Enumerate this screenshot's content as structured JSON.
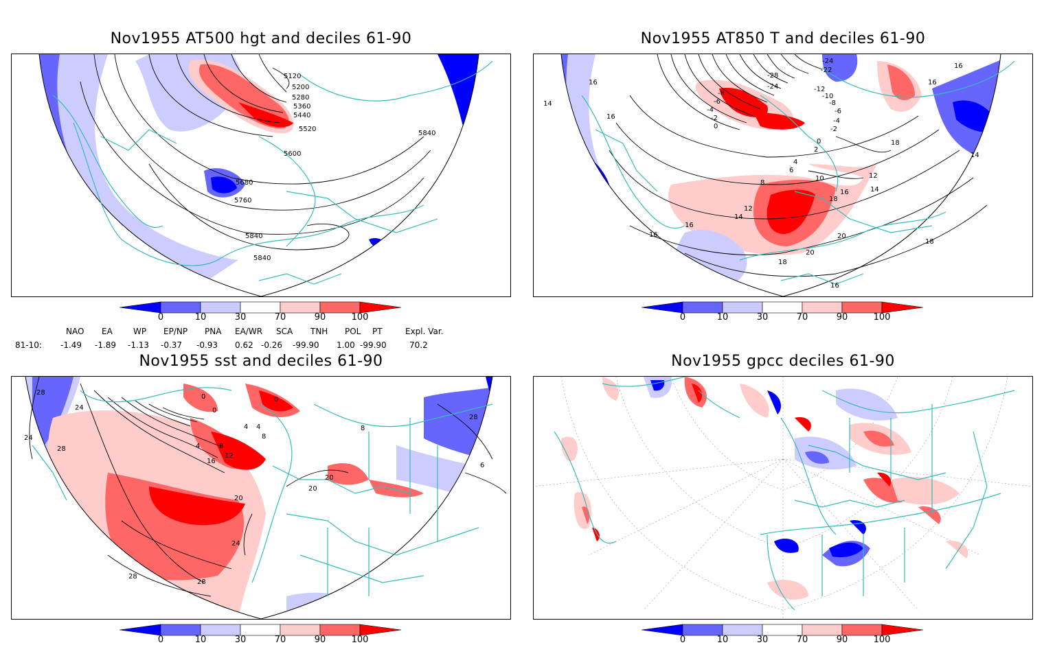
{
  "panels": [
    {
      "title": "Nov1955 AT500 hgt and deciles 61-90",
      "contour_labels": [
        "5120",
        "5200",
        "5280",
        "5360",
        "5440",
        "5520",
        "5600",
        "5680",
        "5760",
        "5840",
        "5840",
        "5840"
      ]
    },
    {
      "title": "Nov1955 AT850 T and deciles 61-90",
      "contour_labels": [
        "-24",
        "-22",
        "-28",
        "-24",
        "-12",
        "-8",
        "-6",
        "-4",
        "-2",
        "0",
        "-10",
        "-8",
        "-6",
        "-4",
        "-2",
        "0",
        "2",
        "4",
        "6",
        "8",
        "10",
        "12",
        "14",
        "16",
        "16",
        "18",
        "18",
        "20",
        "20",
        "18",
        "16",
        "16",
        "16",
        "14",
        "16",
        "14",
        "12",
        "14",
        "16",
        "16",
        "18"
      ]
    },
    {
      "title": "Nov1955 sst and deciles 61-90",
      "contour_labels": [
        "28",
        "24",
        "24",
        "28",
        "0",
        "0",
        "0",
        "4",
        "4",
        "4",
        "8",
        "8",
        "12",
        "16",
        "20",
        "20",
        "20",
        "24",
        "28",
        "28",
        "28",
        "6",
        "8"
      ]
    },
    {
      "title": "Nov1955 gpcc deciles 61-90",
      "contour_labels": []
    }
  ],
  "colorbar": {
    "labels": [
      "0",
      "10",
      "30",
      "70",
      "90",
      "100"
    ],
    "colors": [
      "#0000ff",
      "#6666ff",
      "#ccccff",
      "#ffffff",
      "#ffcccc",
      "#ff6666",
      "#ff0000"
    ]
  },
  "indices": {
    "headers": [
      "NAO",
      "EA",
      "WP",
      "EP/NP",
      "PNA",
      "EA/WR",
      "SCA",
      "TNH",
      "POL",
      "PT",
      "Expl. Var."
    ],
    "row_label": "81-10:",
    "values": [
      "-1.49",
      "-1.89",
      "-1.13",
      "-0.37",
      "-0.93",
      "0.62",
      "-0.26",
      "-99.90",
      "1.00",
      "-99.90",
      "70.2"
    ]
  },
  "colors": {
    "coast": "#33bbbb",
    "contour": "#000000",
    "grid": "#999999"
  }
}
